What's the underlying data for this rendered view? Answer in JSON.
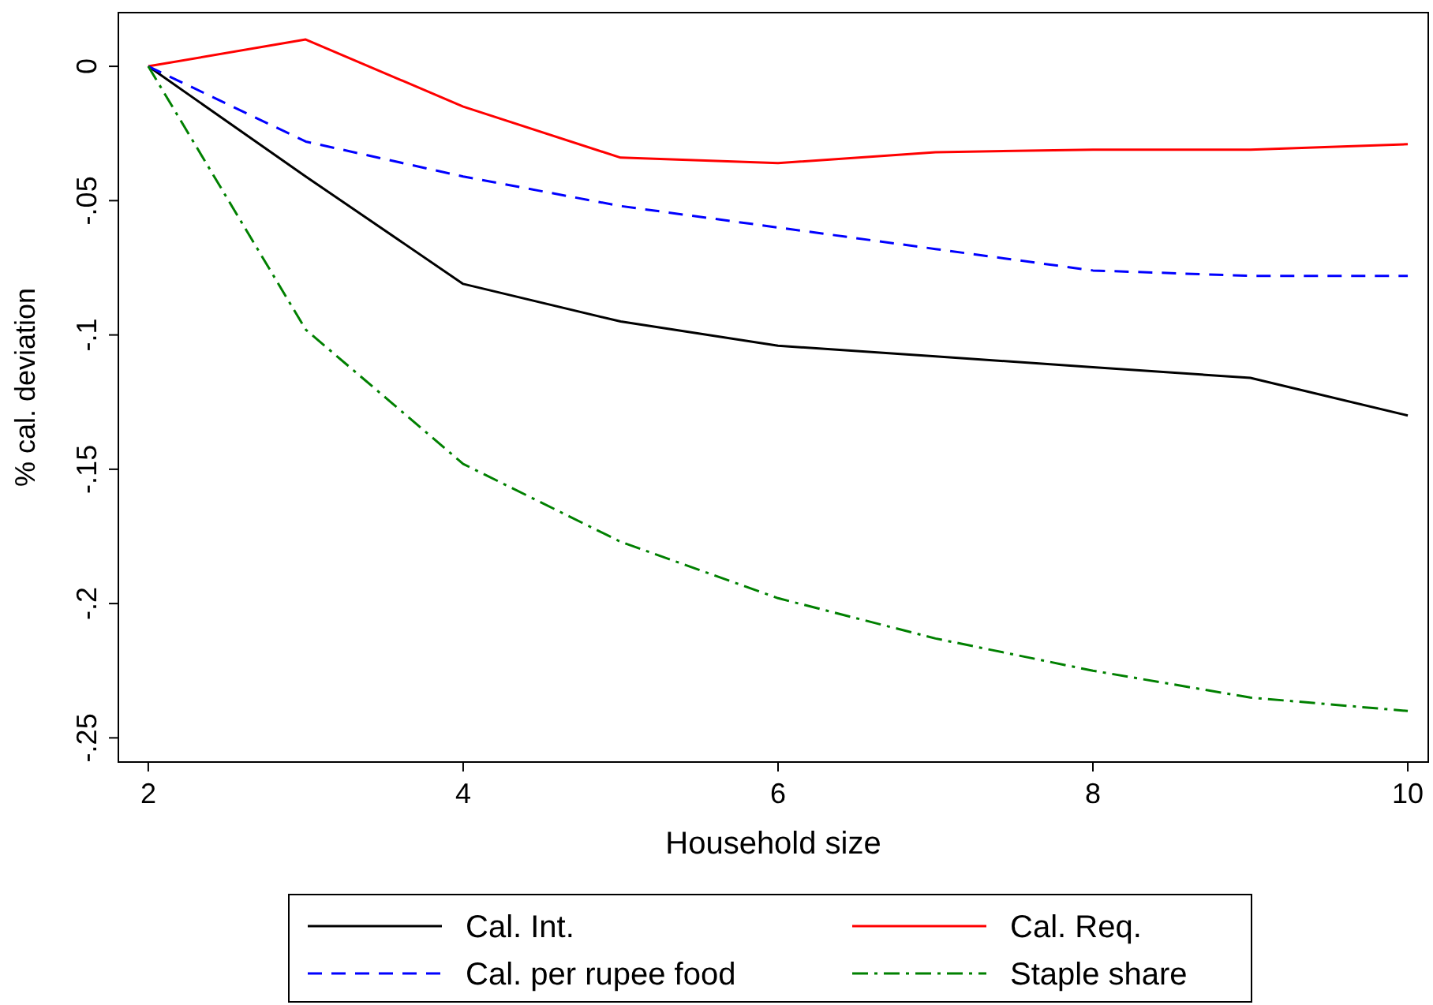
{
  "chart_data": {
    "type": "line",
    "xlabel": "Household size",
    "ylabel": "% cal. deviation",
    "x": [
      2,
      3,
      4,
      5,
      6,
      7,
      8,
      9,
      10
    ],
    "xlim": [
      1.81,
      10.13
    ],
    "xticks": [
      2,
      4,
      6,
      8,
      10
    ],
    "ylim": [
      -0.259,
      0.02
    ],
    "yticks": [
      {
        "value": 0,
        "label": "0"
      },
      {
        "value": -0.05,
        "label": "-.05"
      },
      {
        "value": -0.1,
        "label": "-.1"
      },
      {
        "value": -0.15,
        "label": "-.15"
      },
      {
        "value": -0.2,
        "label": "-.2"
      },
      {
        "value": -0.25,
        "label": "-.25"
      }
    ],
    "grid": false,
    "legend": "bottom",
    "marker": "none",
    "series": [
      {
        "name": "Cal. Int.",
        "color": "#000000",
        "line_style": "solid",
        "values": [
          0,
          -0.041,
          -0.081,
          -0.095,
          -0.104,
          -0.108,
          -0.112,
          -0.116,
          -0.13
        ]
      },
      {
        "name": "Cal. Req.",
        "color": "#ff0000",
        "line_style": "solid",
        "values": [
          0,
          0.01,
          -0.015,
          -0.034,
          -0.036,
          -0.032,
          -0.031,
          -0.031,
          -0.029
        ]
      },
      {
        "name": "Cal. per rupee food",
        "color": "#0000ff",
        "line_style": "dashed",
        "values": [
          0,
          -0.028,
          -0.041,
          -0.052,
          -0.06,
          -0.068,
          -0.076,
          -0.078,
          -0.078
        ]
      },
      {
        "name": "Staple share",
        "color": "#008000",
        "line_style": "dashdot",
        "values": [
          0,
          -0.098,
          -0.148,
          -0.177,
          -0.198,
          -0.213,
          -0.225,
          -0.235,
          -0.24
        ]
      }
    ]
  }
}
